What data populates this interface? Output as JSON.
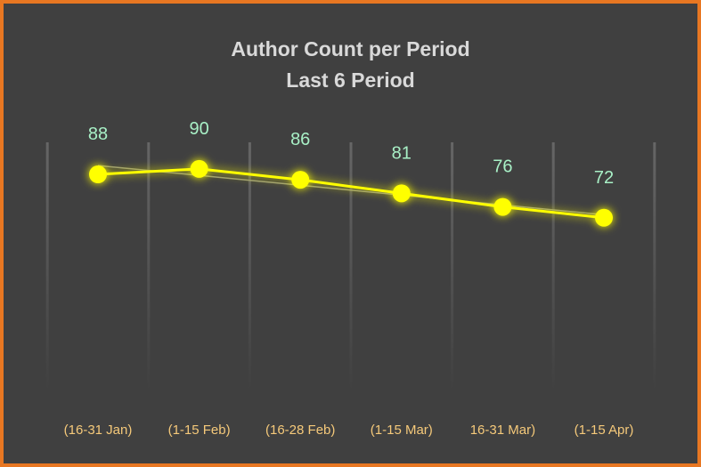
{
  "chart_data": {
    "type": "line",
    "title": "Author Count per Period",
    "subtitle": "Last 6 Period",
    "categories": [
      "(16-31 Jan)",
      "(1-15 Feb)",
      "(16-28 Feb)",
      "(1-15 Mar)",
      "16-31 Mar)",
      "(1-15 Apr)"
    ],
    "series": [
      {
        "name": "Author Count",
        "values": [
          88,
          90,
          86,
          81,
          76,
          72
        ]
      }
    ],
    "trendline": true,
    "xlabel": "",
    "ylabel": "",
    "colors": {
      "background": "#404040",
      "border": "#e87722",
      "line": "#ffff00",
      "marker": "#ffff00",
      "data_label": "#a8f0c6",
      "category_label": "#f5c97a",
      "title": "#d9d9d9",
      "gridline": "#595959",
      "trendline": "#9a9a7a"
    }
  }
}
